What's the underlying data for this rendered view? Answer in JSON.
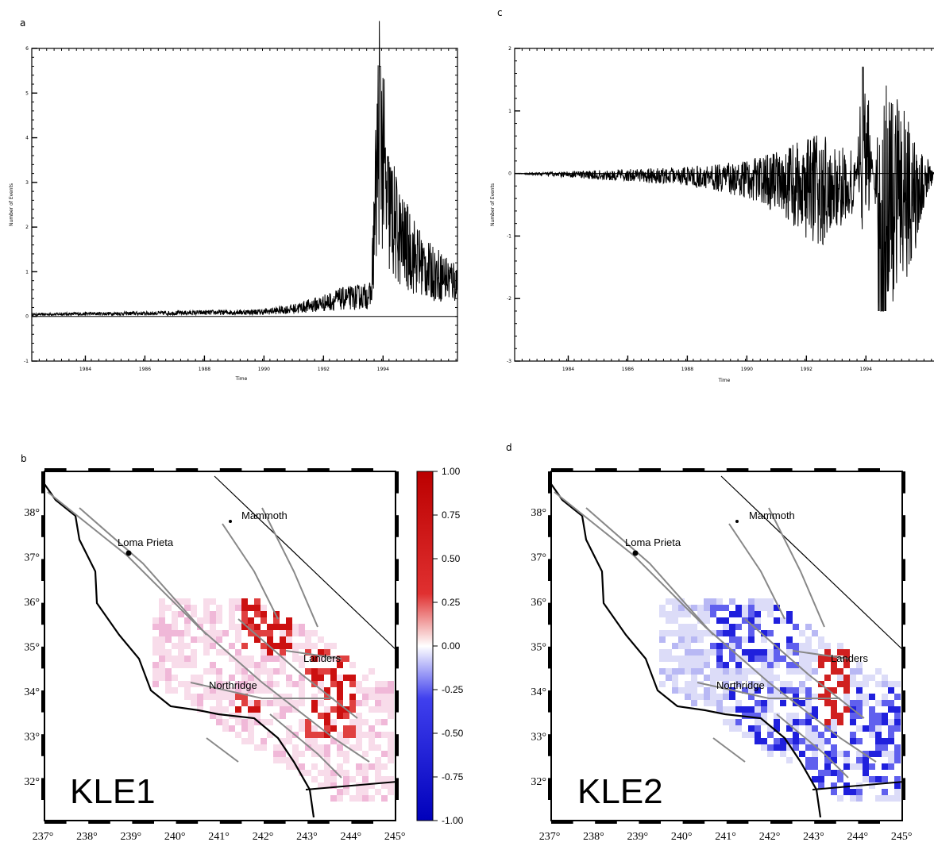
{
  "panel_labels": {
    "a": "a",
    "b": "b",
    "c": "c",
    "d": "d"
  },
  "chart_data": [
    {
      "id": "a",
      "type": "line",
      "ylabel": "Number of Events",
      "xlabel": "Time",
      "xlim": [
        1982.2,
        1996.5
      ],
      "ylim": [
        -1,
        6
      ],
      "yticks": [
        "-1",
        "0",
        "1",
        "2",
        "3",
        "4",
        "5",
        "6"
      ],
      "xticks": [
        "1984",
        "1986",
        "1988",
        "1990",
        "1992",
        "1994"
      ],
      "series": [
        {
          "x": [
            1982.2,
            1984,
            1986,
            1988,
            1990,
            1991,
            1992,
            1992.5,
            1993,
            1993.6,
            1993.9,
            1994.1,
            1994.6,
            1995.5,
            1996.5
          ],
          "y": [
            0.05,
            0.07,
            0.08,
            0.1,
            0.12,
            0.2,
            0.35,
            0.45,
            0.5,
            0.55,
            5.6,
            3.0,
            2.0,
            1.2,
            0.9
          ]
        }
      ]
    },
    {
      "id": "c",
      "type": "line",
      "ylabel": "Number of Events",
      "xlabel": "Time",
      "xlim": [
        1982.2,
        1996.5
      ],
      "ylim": [
        -3,
        2
      ],
      "yticks": [
        "-3",
        "-2",
        "-1",
        "0",
        "1",
        "2"
      ],
      "xticks": [
        "1984",
        "1986",
        "1988",
        "1990",
        "1992",
        "1994"
      ],
      "series": [
        {
          "x": [
            1982.2,
            1984,
            1986,
            1988,
            1990,
            1991,
            1992,
            1992.5,
            1993,
            1993.6,
            1993.9,
            1994.1,
            1994.6,
            1995.5,
            1996.5
          ],
          "y": [
            0.0,
            -0.05,
            -0.1,
            -0.15,
            -0.3,
            -0.5,
            -0.8,
            -0.9,
            -0.7,
            -0.5,
            1.7,
            0.9,
            -2.2,
            -1.2,
            0.3
          ]
        }
      ]
    }
  ],
  "maps": [
    {
      "id": "b",
      "name": "KLE1"
    },
    {
      "id": "d",
      "name": "KLE2"
    }
  ],
  "map_axes": {
    "lat_labels": [
      "38°",
      "37°",
      "36°",
      "35°",
      "34°",
      "33°",
      "32°"
    ],
    "lon_labels": [
      "237°",
      "238°",
      "239°",
      "240°",
      "241°",
      "242°",
      "243°",
      "244°",
      "245°"
    ]
  },
  "places": {
    "mammoth": "Mammoth",
    "loma_prieta": "Loma Prieta",
    "landers": "Landers",
    "northridge": "Northridge"
  },
  "colorbar": {
    "ticks": [
      "1.00",
      "0.75",
      "0.50",
      "0.25",
      "0.00",
      "-0.25",
      "-0.50",
      "-0.75",
      "-1.00"
    ],
    "colors": {
      "positive": "#cc0000",
      "zero": "#ffffff",
      "negative": "#0000cc"
    }
  }
}
